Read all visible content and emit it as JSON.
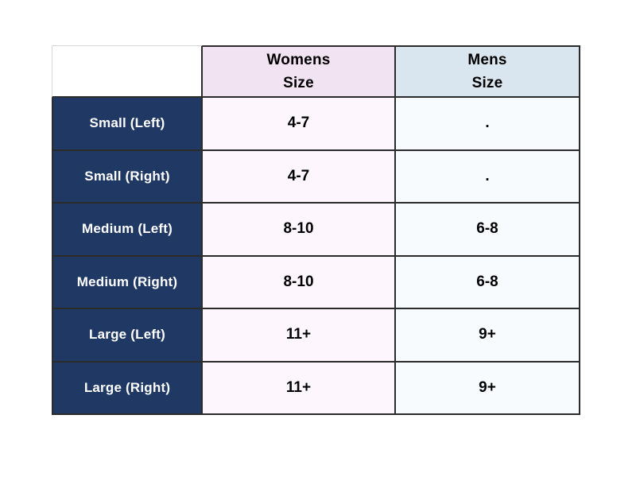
{
  "chart_data": {
    "type": "table",
    "columns": [
      {
        "line1": "",
        "line2": ""
      },
      {
        "line1": "Womens",
        "line2": "Size"
      },
      {
        "line1": "Mens",
        "line2": "Size"
      }
    ],
    "rows": [
      {
        "label": "Small (Left)",
        "womens": "4-7",
        "mens": "."
      },
      {
        "label": "Small (Right)",
        "womens": "4-7",
        "mens": "."
      },
      {
        "label": "Medium (Left)",
        "womens": "8-10",
        "mens": "6-8"
      },
      {
        "label": "Medium (Right)",
        "womens": "8-10",
        "mens": "6-8"
      },
      {
        "label": "Large (Left)",
        "womens": "11+",
        "mens": "9+"
      },
      {
        "label": "Large (Right)",
        "womens": "11+",
        "mens": "9+"
      }
    ]
  },
  "colors": {
    "page_bg": "#FFFFFF",
    "label_navy": "#1F3864",
    "label_text": "#FFFFFF",
    "womens_header_bg": "#F2E3F2",
    "mens_header_bg": "#DAE6EF",
    "womens_cell_bg": "#FDF7FD",
    "mens_cell_bg": "#F7FBFD",
    "value_text": "#000000",
    "border_dark": "#2B2B2B",
    "border_light": "#D6D6D6"
  }
}
